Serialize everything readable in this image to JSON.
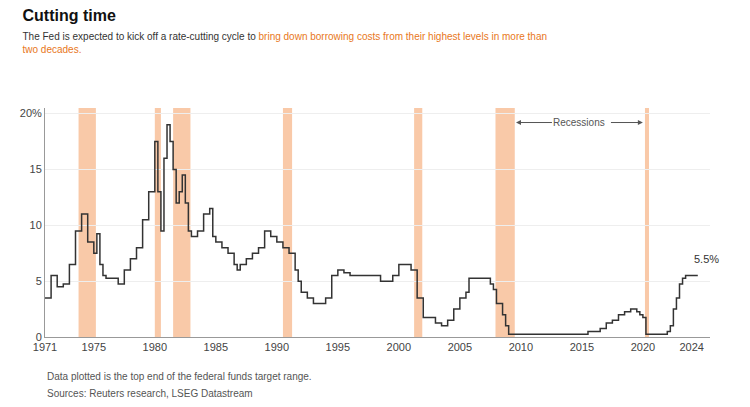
{
  "chart_data": {
    "type": "step",
    "title": "Cutting time",
    "subtitle": [
      [
        {
          "text": "The Fed is expected to kick off a rate-cutting cycle to "
        },
        {
          "text": "bring down borrowing costs from their highest levels in more than",
          "color": "#e87722"
        }
      ],
      [
        {
          "text": "two decades.",
          "color": "#e87722"
        }
      ]
    ],
    "footnotes": [
      "Data plotted is the top end of the federal funds target range.",
      "Sources: Reuters research, LSEG Datastream"
    ],
    "color": "#333333",
    "recession_bands": {
      "color": "#f9c9a8",
      "ranges": [
        [
          1973.75,
          1975.17
        ],
        [
          1980.0,
          1980.5
        ],
        [
          1981.5,
          1982.92
        ],
        [
          1990.5,
          1991.25
        ],
        [
          2001.25,
          2001.92
        ],
        [
          2007.92,
          2009.5
        ],
        [
          2020.17,
          2020.5
        ]
      ]
    },
    "annotations": [
      {
        "text": "Recessions",
        "y": 19.2,
        "x_from": 2009.6,
        "x_to": 2020.0
      },
      {
        "text": "5.5%",
        "x": 2024.0,
        "y": 6.3
      }
    ],
    "x": [
      1971.0,
      1971.5,
      1972.0,
      1972.5,
      1973.0,
      1973.5,
      1974.0,
      1974.5,
      1975.0,
      1975.25,
      1975.5,
      1975.75,
      1976.0,
      1976.5,
      1977.0,
      1977.5,
      1978.0,
      1978.5,
      1979.0,
      1979.5,
      1980.0,
      1980.25,
      1980.5,
      1980.75,
      1981.0,
      1981.25,
      1981.5,
      1981.75,
      1982.0,
      1982.25,
      1982.5,
      1982.75,
      1983.0,
      1983.5,
      1984.0,
      1984.5,
      1984.75,
      1985.0,
      1985.5,
      1986.0,
      1986.5,
      1986.75,
      1987.0,
      1987.5,
      1988.0,
      1988.5,
      1989.0,
      1989.5,
      1990.0,
      1990.5,
      1991.0,
      1991.5,
      1991.75,
      1992.0,
      1992.5,
      1993.0,
      1994.0,
      1994.5,
      1995.0,
      1995.5,
      1996.0,
      1996.5,
      1997.0,
      1997.5,
      1998.0,
      1998.5,
      1999.0,
      1999.5,
      2000.0,
      2000.5,
      2001.0,
      2001.5,
      2002.0,
      2002.5,
      2003.0,
      2003.5,
      2004.0,
      2004.5,
      2005.0,
      2005.5,
      2005.75,
      2006.0,
      2006.5,
      2007.0,
      2007.5,
      2007.75,
      2008.0,
      2008.5,
      2008.75,
      2009.0,
      2009.5,
      2010.0,
      2011.0,
      2012.0,
      2013.0,
      2014.0,
      2015.0,
      2015.5,
      2016.0,
      2016.5,
      2017.0,
      2017.5,
      2018.0,
      2018.5,
      2019.0,
      2019.5,
      2019.75,
      2020.0,
      2020.25,
      2021.0,
      2021.5,
      2022.0,
      2022.25,
      2022.5,
      2022.75,
      2023.0,
      2023.25,
      2023.5,
      2024.0,
      2024.5
    ],
    "values": [
      3.5,
      5.5,
      4.5,
      4.75,
      6.5,
      9.5,
      11.0,
      8.5,
      7.5,
      9.25,
      6.5,
      5.5,
      5.25,
      5.25,
      4.75,
      6.0,
      7.0,
      8.0,
      10.5,
      13.0,
      17.5,
      13.0,
      9.5,
      16.0,
      19.0,
      17.5,
      15.0,
      12.0,
      13.0,
      14.5,
      12.0,
      9.5,
      9.0,
      9.5,
      11.0,
      11.5,
      9.0,
      8.5,
      8.0,
      7.5,
      6.5,
      6.0,
      6.5,
      7.0,
      7.5,
      8.0,
      9.5,
      9.0,
      8.5,
      8.0,
      7.5,
      6.0,
      5.0,
      4.0,
      3.5,
      3.0,
      3.5,
      5.5,
      6.0,
      5.75,
      5.5,
      5.5,
      5.5,
      5.5,
      5.5,
      5.0,
      5.0,
      5.5,
      6.5,
      6.5,
      6.0,
      3.5,
      1.75,
      1.75,
      1.25,
      1.0,
      1.5,
      2.5,
      3.5,
      4.0,
      5.25,
      5.25,
      5.25,
      5.25,
      4.75,
      4.25,
      3.0,
      2.0,
      1.0,
      0.25,
      0.25,
      0.25,
      0.25,
      0.25,
      0.25,
      0.25,
      0.25,
      0.5,
      0.5,
      0.75,
      1.25,
      1.5,
      2.0,
      2.25,
      2.5,
      2.25,
      2.0,
      1.75,
      0.25,
      0.25,
      0.25,
      0.5,
      1.0,
      2.5,
      3.5,
      4.75,
      5.25,
      5.5,
      5.5,
      5.5
    ],
    "xlim": [
      1971,
      2025.5
    ],
    "xticks": [
      1971,
      1975,
      1980,
      1985,
      1990,
      1995,
      2000,
      2005,
      2010,
      2015,
      2020,
      2024
    ],
    "ylim": [
      0,
      20.5
    ],
    "yticks": [
      0,
      5,
      10,
      15,
      {
        "value": 20,
        "label": "20%"
      }
    ],
    "grid": "y"
  }
}
